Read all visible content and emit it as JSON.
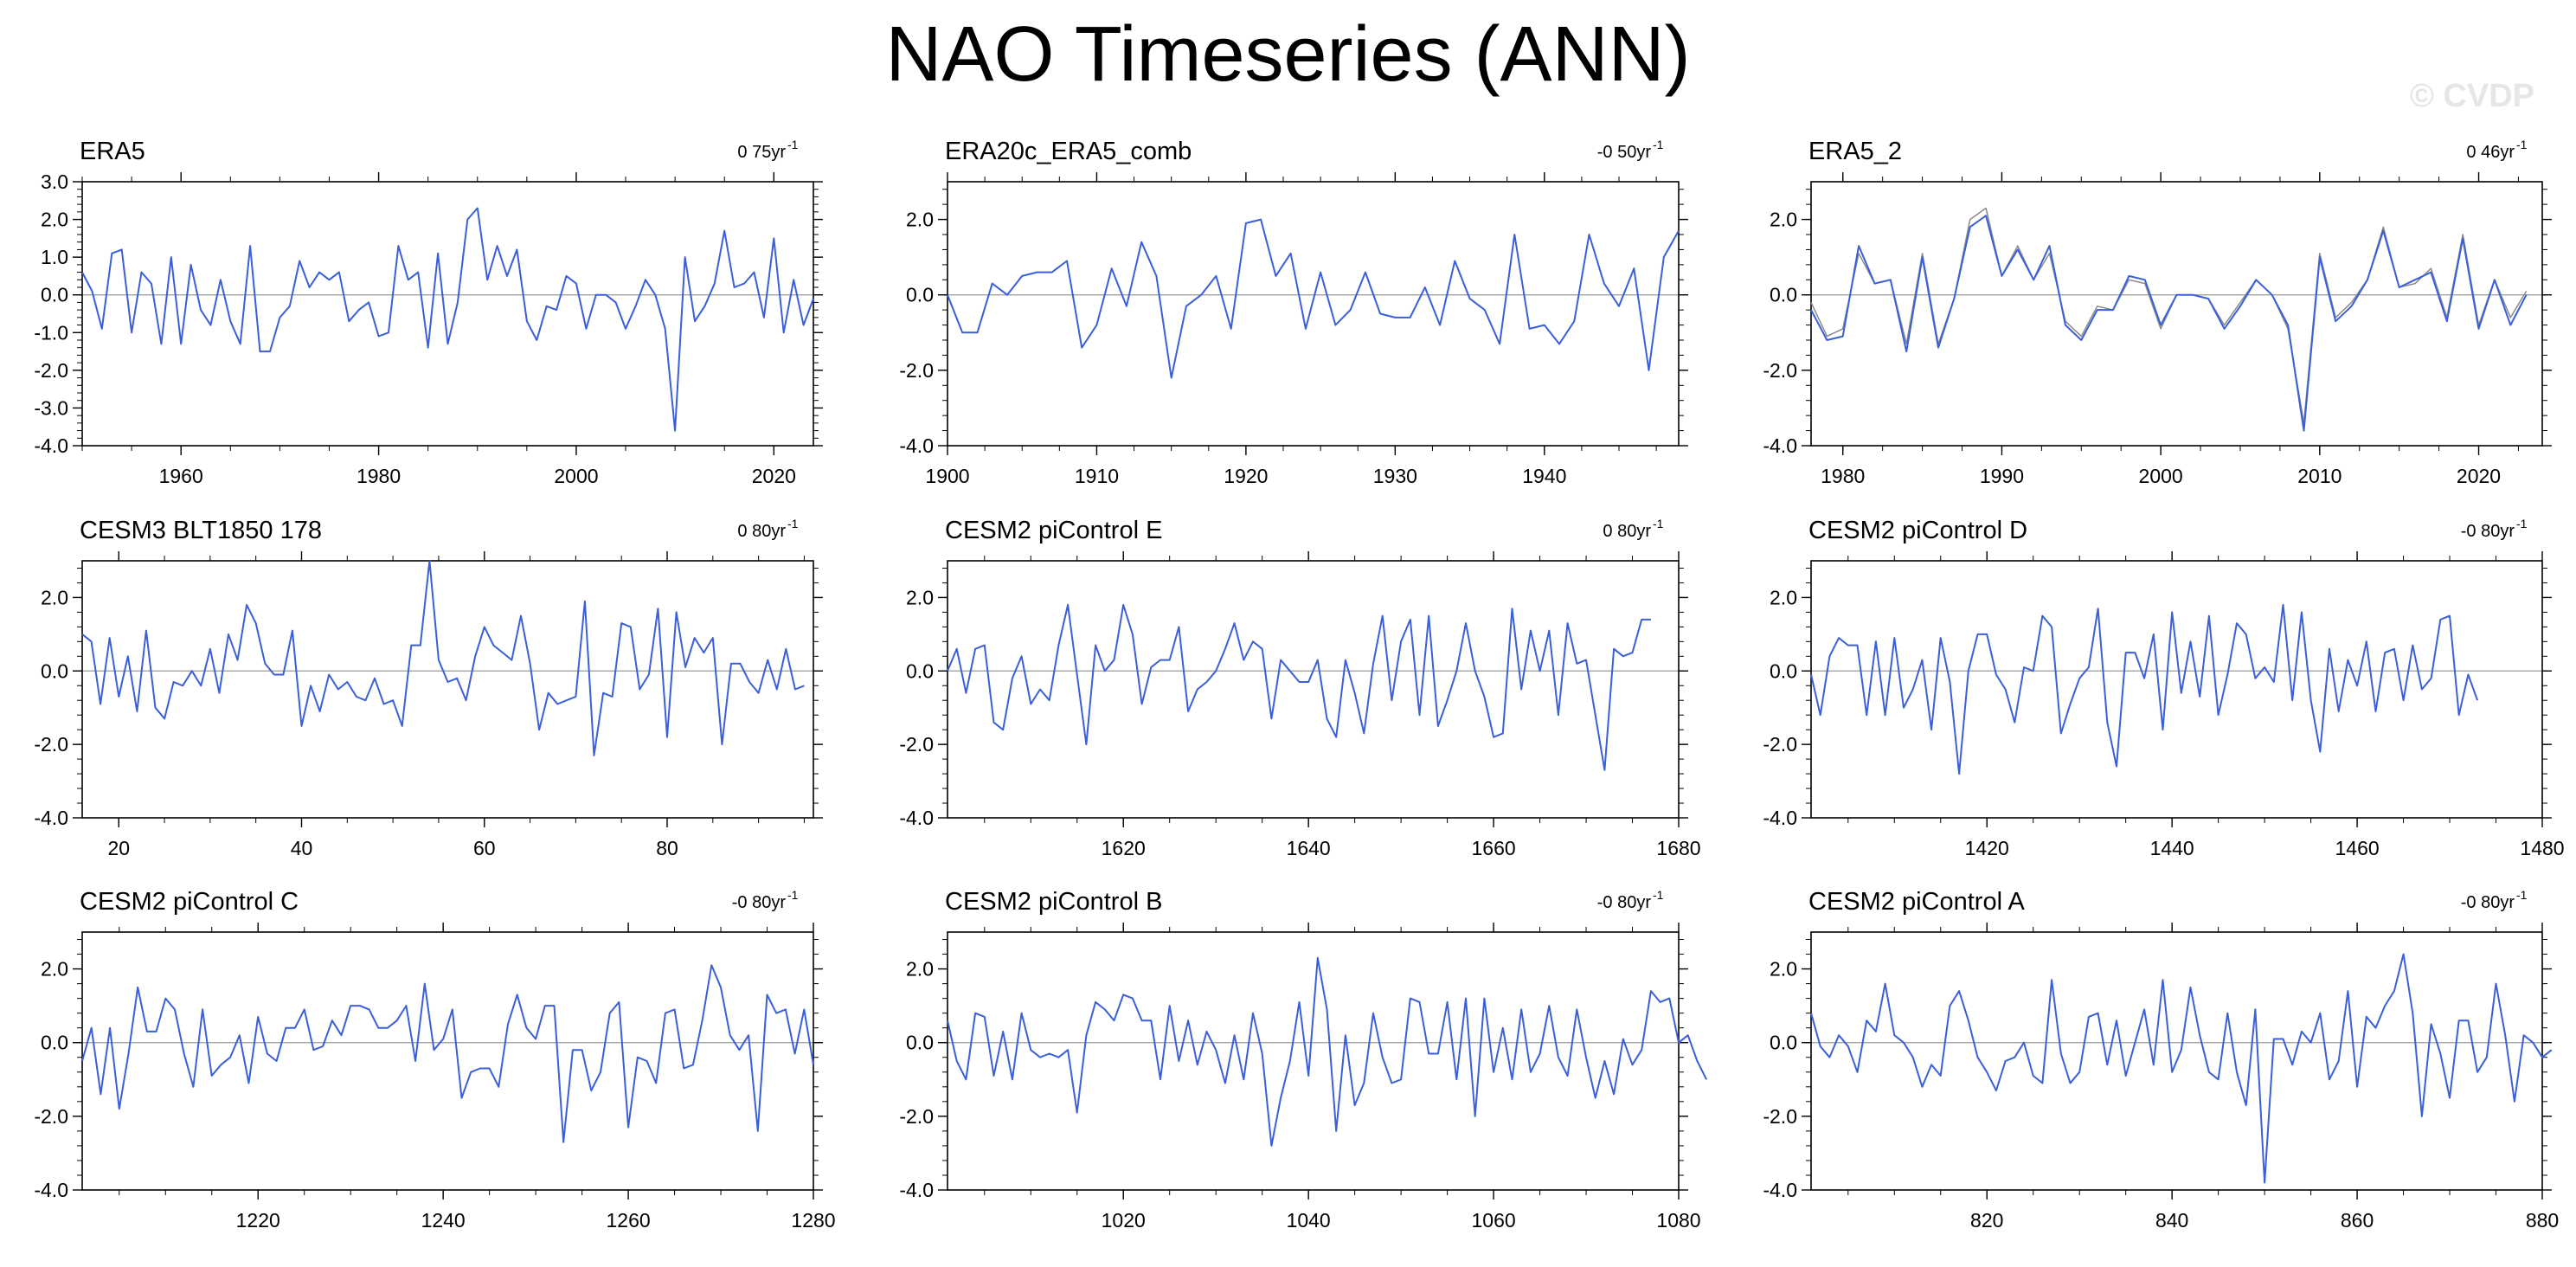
{
  "page": {
    "title": "NAO Timeseries (ANN)",
    "watermark": "© CVDP",
    "line_color": "#3a5fd9",
    "secondary_line_color": "#8a8a8a"
  },
  "chart_data": [
    {
      "type": "line",
      "title": "ERA5",
      "trend": "0 75yr",
      "xlim": [
        1950,
        2024
      ],
      "ylim": [
        -4,
        3
      ],
      "yticks": [
        -4,
        -3,
        -2,
        -1,
        0,
        1,
        2,
        3
      ],
      "ytick_labels": [
        "-4.0",
        "-3.0",
        "-2.0",
        "-1.0",
        "0.0",
        "1.0",
        "2.0",
        "3.0"
      ],
      "xticks": [
        1960,
        1980,
        2000,
        2020
      ],
      "series": [
        {
          "x0": 1950,
          "values": [
            0.6,
            0.1,
            -0.9,
            1.1,
            1.2,
            -1.0,
            0.6,
            0.3,
            -1.3,
            1.0,
            -1.3,
            0.8,
            -0.4,
            -0.8,
            0.4,
            -0.7,
            -1.3,
            1.3,
            -1.5,
            -1.5,
            -0.6,
            -0.3,
            0.9,
            0.2,
            0.6,
            0.4,
            0.6,
            -0.7,
            -0.4,
            -0.2,
            -1.1,
            -1.0,
            1.3,
            0.4,
            0.6,
            -1.4,
            1.1,
            -1.3,
            -0.2,
            2.0,
            2.3,
            0.4,
            1.3,
            0.5,
            1.2,
            -0.7,
            -1.2,
            -0.3,
            -0.4,
            0.5,
            0.3,
            -0.9,
            0.0,
            0.0,
            -0.2,
            -0.9,
            -0.3,
            0.4,
            0.0,
            -0.9,
            -3.6,
            1.0,
            -0.7,
            -0.3,
            0.3,
            1.7,
            0.2,
            0.3,
            0.6,
            -0.6,
            1.5,
            -1.0,
            0.4,
            -0.8,
            -0.1
          ]
        }
      ]
    },
    {
      "type": "line",
      "title": "ERA20c_ERA5_comb",
      "trend": "-0 50yr",
      "xlim": [
        1900,
        1949
      ],
      "ylim": [
        -4,
        3
      ],
      "yticks": [
        -4,
        -2,
        0,
        2
      ],
      "ytick_labels": [
        "-4.0",
        "-2.0",
        "0.0",
        "2.0"
      ],
      "xticks": [
        1900,
        1910,
        1920,
        1930,
        1940
      ],
      "series": [
        {
          "x0": 1900,
          "values": [
            0.0,
            -1.0,
            -1.0,
            0.3,
            0.0,
            0.5,
            0.6,
            0.6,
            0.9,
            -1.4,
            -0.8,
            0.7,
            -0.3,
            1.4,
            0.5,
            -2.2,
            -0.3,
            0.0,
            0.5,
            -0.9,
            1.9,
            2.0,
            0.5,
            1.1,
            -0.9,
            0.6,
            -0.8,
            -0.4,
            0.6,
            -0.5,
            -0.6,
            -0.6,
            0.2,
            -0.8,
            0.9,
            -0.1,
            -0.4,
            -1.3,
            1.6,
            -0.9,
            -0.8,
            -1.3,
            -0.7,
            1.6,
            0.3,
            -0.3,
            0.7,
            -2.0,
            1.0,
            1.7
          ]
        }
      ]
    },
    {
      "type": "line",
      "title": "ERA5_2",
      "trend": "0 46yr",
      "xlim": [
        1978,
        2024
      ],
      "ylim": [
        -4,
        3
      ],
      "yticks": [
        -4,
        -2,
        0,
        2
      ],
      "ytick_labels": [
        "-4.0",
        "-2.0",
        "0.0",
        "2.0"
      ],
      "xticks": [
        1980,
        1990,
        2000,
        2010,
        2020
      ],
      "series": [
        {
          "x0": 1978,
          "values": [
            -0.4,
            -1.2,
            -1.1,
            1.3,
            0.3,
            0.4,
            -1.5,
            1.0,
            -1.4,
            -0.1,
            1.8,
            2.1,
            0.5,
            1.2,
            0.4,
            1.3,
            -0.8,
            -1.2,
            -0.4,
            -0.4,
            0.5,
            0.4,
            -0.8,
            0.0,
            0.0,
            -0.1,
            -0.9,
            -0.3,
            0.4,
            0.0,
            -0.8,
            -3.6,
            1.0,
            -0.7,
            -0.3,
            0.4,
            1.7,
            0.2,
            0.4,
            0.6,
            -0.7,
            1.5,
            -0.9,
            0.4,
            -0.8,
            0.0
          ]
        },
        {
          "x0": 1978,
          "values": [
            -0.2,
            -1.1,
            -0.9,
            1.1,
            0.3,
            0.4,
            -1.3,
            1.1,
            -1.3,
            -0.1,
            2.0,
            2.3,
            0.5,
            1.3,
            0.4,
            1.1,
            -0.7,
            -1.1,
            -0.3,
            -0.4,
            0.4,
            0.3,
            -0.9,
            0.0,
            0.0,
            -0.1,
            -0.8,
            -0.2,
            0.4,
            0.0,
            -0.9,
            -3.4,
            1.1,
            -0.6,
            -0.2,
            0.4,
            1.8,
            0.2,
            0.3,
            0.7,
            -0.6,
            1.6,
            -0.8,
            0.4,
            -0.6,
            0.1
          ]
        }
      ]
    },
    {
      "type": "line",
      "title": "CESM3 BLT1850 178",
      "trend": "0 80yr",
      "xlim": [
        16,
        96
      ],
      "ylim": [
        -4,
        3
      ],
      "yticks": [
        -4,
        -2,
        0,
        2
      ],
      "ytick_labels": [
        "-4.0",
        "-2.0",
        "0.0",
        "2.0"
      ],
      "xticks": [
        20,
        40,
        60,
        80
      ],
      "series": [
        {
          "x0": 16,
          "values": [
            1.0,
            0.8,
            -0.9,
            0.9,
            -0.7,
            0.4,
            -1.1,
            1.1,
            -1.0,
            -1.3,
            -0.3,
            -0.4,
            0.0,
            -0.4,
            0.6,
            -0.6,
            1.0,
            0.3,
            1.8,
            1.3,
            0.2,
            -0.1,
            -0.1,
            1.1,
            -1.5,
            -0.4,
            -1.1,
            -0.1,
            -0.5,
            -0.3,
            -0.7,
            -0.8,
            -0.2,
            -0.9,
            -0.8,
            -1.5,
            0.7,
            0.7,
            3.2,
            0.3,
            -0.3,
            -0.2,
            -0.8,
            0.4,
            1.2,
            0.7,
            0.5,
            0.3,
            1.5,
            0.2,
            -1.6,
            -0.6,
            -0.9,
            -0.8,
            -0.7,
            1.9,
            -2.3,
            -0.6,
            -0.7,
            1.3,
            1.2,
            -0.5,
            -0.1,
            1.7,
            -1.8,
            1.6,
            0.1,
            0.9,
            0.5,
            0.9,
            -2.0,
            0.2,
            0.2,
            -0.3,
            -0.6,
            0.3,
            -0.5,
            0.6,
            -0.5,
            -0.4
          ]
        }
      ]
    },
    {
      "type": "line",
      "title": "CESM2 piControl E",
      "trend": "0 80yr",
      "xlim": [
        1601,
        1680
      ],
      "ylim": [
        -4,
        3
      ],
      "yticks": [
        -4,
        -2,
        0,
        2
      ],
      "ytick_labels": [
        "-4.0",
        "-2.0",
        "0.0",
        "2.0"
      ],
      "xticks": [
        1620,
        1640,
        1660,
        1680
      ],
      "series": [
        {
          "x0": 1601,
          "values": [
            0.0,
            0.6,
            -0.6,
            0.6,
            0.7,
            -1.4,
            -1.6,
            -0.2,
            0.4,
            -0.9,
            -0.5,
            -0.8,
            0.7,
            1.8,
            -0.1,
            -2.0,
            0.7,
            0.0,
            0.3,
            1.8,
            1.0,
            -0.9,
            0.1,
            0.3,
            0.3,
            1.2,
            -1.1,
            -0.5,
            -0.3,
            0.0,
            0.6,
            1.3,
            0.3,
            0.8,
            0.6,
            -1.3,
            0.3,
            0.0,
            -0.3,
            -0.3,
            0.3,
            -1.3,
            -1.8,
            0.3,
            -0.6,
            -1.7,
            0.2,
            1.5,
            -0.8,
            0.8,
            1.4,
            -1.2,
            1.5,
            -1.5,
            -0.8,
            0.0,
            1.3,
            0.0,
            -0.7,
            -1.8,
            -1.7,
            1.7,
            -0.5,
            1.1,
            0.0,
            1.1,
            -1.2,
            1.3,
            0.2,
            0.3,
            -1.2,
            -2.7,
            0.6,
            0.4,
            0.5,
            1.4,
            1.4
          ]
        }
      ]
    },
    {
      "type": "line",
      "title": "CESM2 piControl D",
      "trend": "-0 80yr",
      "xlim": [
        1401,
        1480
      ],
      "ylim": [
        -4,
        3
      ],
      "yticks": [
        -4,
        -2,
        0,
        2
      ],
      "ytick_labels": [
        "-4.0",
        "-2.0",
        "0.0",
        "2.0"
      ],
      "xticks": [
        1420,
        1440,
        1460,
        1480
      ],
      "series": [
        {
          "x0": 1401,
          "values": [
            -0.1,
            -1.2,
            0.4,
            0.9,
            0.7,
            0.7,
            -1.2,
            0.8,
            -1.2,
            0.9,
            -1.0,
            -0.5,
            0.3,
            -1.6,
            0.9,
            -0.3,
            -2.8,
            0.0,
            1.0,
            1.0,
            -0.1,
            -0.5,
            -1.4,
            0.1,
            0.0,
            1.5,
            1.2,
            -1.7,
            -0.9,
            -0.2,
            0.1,
            1.7,
            -1.4,
            -2.6,
            0.5,
            0.5,
            -0.2,
            1.0,
            -1.6,
            1.6,
            -0.6,
            0.8,
            -0.7,
            1.5,
            -1.2,
            -0.1,
            1.3,
            1.0,
            -0.2,
            0.1,
            -0.3,
            1.8,
            -0.8,
            1.6,
            -0.8,
            -2.2,
            0.6,
            -1.1,
            0.3,
            -0.4,
            0.8,
            -1.1,
            0.5,
            0.6,
            -0.8,
            0.7,
            -0.5,
            -0.2,
            1.4,
            1.5,
            -1.2,
            -0.1,
            -0.8
          ]
        }
      ]
    },
    {
      "type": "line",
      "title": "CESM2 piControl C",
      "trend": "-0 80yr",
      "xlim": [
        1201,
        1280
      ],
      "ylim": [
        -4,
        3
      ],
      "yticks": [
        -4,
        -2,
        0,
        2
      ],
      "ytick_labels": [
        "-4.0",
        "-2.0",
        "0.0",
        "2.0"
      ],
      "xticks": [
        1220,
        1240,
        1260,
        1280
      ],
      "series": [
        {
          "x0": 1201,
          "values": [
            -0.5,
            0.4,
            -1.4,
            0.4,
            -1.8,
            -0.3,
            1.5,
            0.3,
            0.3,
            1.2,
            0.9,
            -0.3,
            -1.2,
            0.9,
            -0.9,
            -0.6,
            -0.4,
            0.2,
            -1.1,
            0.7,
            -0.3,
            -0.5,
            0.4,
            0.4,
            0.9,
            -0.2,
            -0.1,
            0.6,
            0.2,
            1.0,
            1.0,
            0.9,
            0.4,
            0.4,
            0.6,
            1.0,
            -0.5,
            1.6,
            -0.2,
            0.1,
            0.9,
            -1.5,
            -0.8,
            -0.7,
            -0.7,
            -1.2,
            0.5,
            1.3,
            0.4,
            0.1,
            1.0,
            1.0,
            -2.7,
            -0.2,
            -0.2,
            -1.3,
            -0.8,
            0.8,
            1.1,
            -2.3,
            -0.4,
            -0.5,
            -1.1,
            0.8,
            0.9,
            -0.7,
            -0.6,
            0.6,
            2.1,
            1.5,
            0.2,
            -0.2,
            0.2,
            -2.4,
            1.3,
            0.8,
            0.9,
            -0.3,
            0.9,
            -0.6
          ]
        }
      ]
    },
    {
      "type": "line",
      "title": "CESM2 piControl B",
      "trend": "-0 80yr",
      "xlim": [
        1001,
        1080
      ],
      "ylim": [
        -4,
        3
      ],
      "yticks": [
        -4,
        -2,
        0,
        2
      ],
      "ytick_labels": [
        "-4.0",
        "-2.0",
        "0.0",
        "2.0"
      ],
      "xticks": [
        1020,
        1040,
        1060,
        1080
      ],
      "series": [
        {
          "x0": 1001,
          "values": [
            0.6,
            -0.5,
            -1.0,
            0.8,
            0.7,
            -0.9,
            0.3,
            -1.0,
            0.8,
            -0.2,
            -0.4,
            -0.3,
            -0.4,
            -0.2,
            -1.9,
            0.2,
            1.1,
            0.9,
            0.6,
            1.3,
            1.2,
            0.6,
            0.6,
            -1.0,
            1.0,
            -0.5,
            0.6,
            -0.6,
            0.3,
            -0.2,
            -1.1,
            0.2,
            -1.0,
            0.8,
            -0.3,
            -2.8,
            -1.5,
            -0.5,
            1.1,
            -0.9,
            2.3,
            0.9,
            -2.4,
            0.2,
            -1.7,
            -1.1,
            0.8,
            -0.4,
            -1.1,
            -1.0,
            1.2,
            1.1,
            -0.3,
            -0.3,
            1.1,
            -1.0,
            1.2,
            -2.0,
            1.2,
            -0.8,
            0.4,
            -1.0,
            0.9,
            -0.8,
            -0.3,
            1.0,
            -0.4,
            -0.9,
            0.9,
            -0.4,
            -1.5,
            -0.5,
            -1.4,
            0.1,
            -0.6,
            -0.2,
            1.4,
            1.1,
            1.2,
            0.0,
            0.2,
            -0.5,
            -1.0
          ]
        }
      ]
    },
    {
      "type": "line",
      "title": "CESM2 piControl A",
      "trend": "-0 80yr",
      "xlim": [
        801,
        880
      ],
      "ylim": [
        -4,
        3
      ],
      "yticks": [
        -4,
        -2,
        0,
        2
      ],
      "ytick_labels": [
        "-4.0",
        "-2.0",
        "0.0",
        "2.0"
      ],
      "xticks": [
        820,
        840,
        860,
        880
      ],
      "series": [
        {
          "x0": 801,
          "values": [
            0.8,
            -0.1,
            -0.4,
            0.2,
            -0.1,
            -0.8,
            0.6,
            0.3,
            1.6,
            0.2,
            0.0,
            -0.4,
            -1.2,
            -0.6,
            -0.9,
            1.0,
            1.4,
            0.6,
            -0.4,
            -0.8,
            -1.3,
            -0.5,
            -0.4,
            0.0,
            -0.9,
            -1.1,
            1.7,
            -0.3,
            -1.1,
            -0.8,
            0.7,
            0.8,
            -0.6,
            0.6,
            -0.9,
            0.0,
            0.9,
            -0.6,
            1.7,
            -0.8,
            -0.2,
            1.5,
            0.2,
            -0.8,
            -1.0,
            0.8,
            -0.8,
            -1.7,
            0.9,
            -3.8,
            0.1,
            0.1,
            -0.6,
            0.3,
            0.0,
            0.8,
            -1.0,
            -0.5,
            1.4,
            -1.2,
            0.7,
            0.4,
            1.0,
            1.4,
            2.4,
            0.8,
            -2.0,
            0.5,
            -0.3,
            -1.5,
            0.6,
            0.6,
            -0.8,
            -0.4,
            1.6,
            0.2,
            -1.6,
            0.2,
            0.0,
            -0.4,
            -0.2
          ]
        }
      ]
    }
  ]
}
